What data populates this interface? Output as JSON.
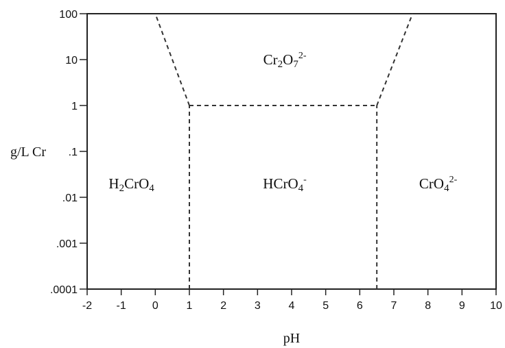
{
  "chart_data": {
    "type": "diagram",
    "xlabel": "pH",
    "ylabel": "g/L Cr",
    "xlim": [
      -2,
      10
    ],
    "y_scale": "log",
    "ylim": [
      0.0001,
      100
    ],
    "x_ticks": [
      -2,
      -1,
      0,
      1,
      2,
      3,
      4,
      5,
      6,
      7,
      8,
      9,
      10
    ],
    "x_tick_labels": [
      "-2",
      "-1",
      "0",
      "1",
      "2",
      "3",
      "4",
      "5",
      "6",
      "7",
      "8",
      "9",
      "10"
    ],
    "y_ticks": [
      0.0001,
      0.001,
      0.01,
      0.1,
      1,
      10,
      100
    ],
    "y_tick_labels": [
      ".0001",
      ".001",
      ".01",
      ".1",
      "1",
      "10",
      "100"
    ],
    "grid": false,
    "regions": [
      {
        "name": "H2CrO4",
        "label_parts": [
          {
            "t": "H"
          },
          {
            "t": "2",
            "s": "sub"
          },
          {
            "t": "CrO"
          },
          {
            "t": "4",
            "s": "sub"
          }
        ],
        "label_pos": {
          "x": -0.7,
          "y": 0.02
        }
      },
      {
        "name": "Cr2O7 2-",
        "label_parts": [
          {
            "t": "Cr"
          },
          {
            "t": "2",
            "s": "sub"
          },
          {
            "t": "O"
          },
          {
            "t": "7",
            "s": "sub"
          },
          {
            "t": "2-",
            "s": "sup"
          }
        ],
        "label_pos": {
          "x": 3.8,
          "y": 10
        }
      },
      {
        "name": "HCrO4-",
        "label_parts": [
          {
            "t": "HCrO"
          },
          {
            "t": "4",
            "s": "sub"
          },
          {
            "t": "-",
            "s": "sup"
          }
        ],
        "label_pos": {
          "x": 3.8,
          "y": 0.02
        }
      },
      {
        "name": "CrO4 2-",
        "label_parts": [
          {
            "t": "CrO"
          },
          {
            "t": "4",
            "s": "sub"
          },
          {
            "t": "2-",
            "s": "sup"
          }
        ],
        "label_pos": {
          "x": 8.3,
          "y": 0.02
        }
      }
    ],
    "boundaries": [
      {
        "name": "boundary-h2cro4-hcro4",
        "points": [
          [
            1,
            0.0001
          ],
          [
            1,
            1
          ]
        ]
      },
      {
        "name": "boundary-hcro4-cro4",
        "points": [
          [
            6.5,
            0.0001
          ],
          [
            6.5,
            1
          ]
        ]
      },
      {
        "name": "boundary-hcro4-cr2o7",
        "points": [
          [
            1,
            1
          ],
          [
            6.5,
            1
          ]
        ]
      },
      {
        "name": "boundary-h2cro4-cr2o7",
        "points": [
          [
            1,
            1
          ],
          [
            0,
            100
          ]
        ]
      },
      {
        "name": "boundary-cro4-cr2o7",
        "points": [
          [
            6.5,
            1
          ],
          [
            7.55,
            100
          ]
        ]
      }
    ]
  }
}
